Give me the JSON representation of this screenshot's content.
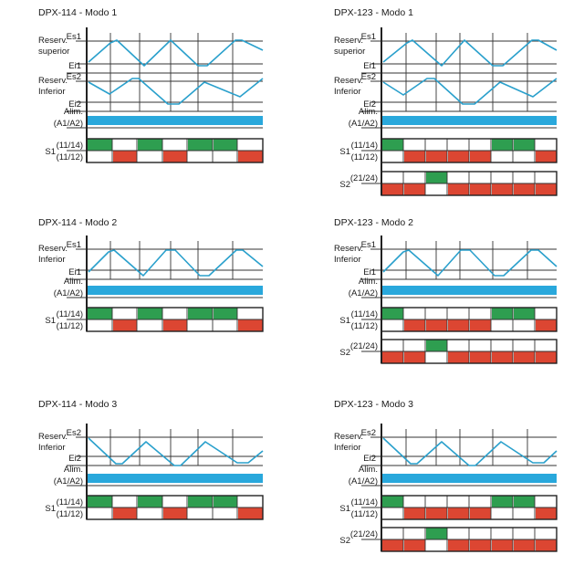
{
  "colors": {
    "wave": "#2aa0cc",
    "alim": "#29a8dc",
    "green": "#2e9e50",
    "red": "#dc4632",
    "grid": "#333333"
  },
  "panels": [
    {
      "title": "DPX-114 - Modo 1",
      "waves": [
        {
          "label": [
            "Reserv.",
            "superior"
          ],
          "hi": "Es1",
          "lo": "Ei1"
        },
        {
          "label": [
            "Reserv.",
            "Inferior"
          ],
          "hi": "Es2",
          "lo": "Ei2"
        }
      ],
      "alim": [
        "Alim.",
        "(A1/A2)"
      ],
      "relays": [
        {
          "name": "S1",
          "top": "(11/14)",
          "bot": "(11/12)",
          "pattern": [
            1,
            0,
            1,
            0,
            1,
            1,
            0
          ]
        }
      ]
    },
    {
      "title": "DPX-123 - Modo 1",
      "waves": [
        {
          "label": [
            "Reserv.",
            "superior"
          ],
          "hi": "Es1",
          "lo": "Ei1"
        },
        {
          "label": [
            "Reserv.",
            "Inferior"
          ],
          "hi": "Es2",
          "lo": "Ei2"
        }
      ],
      "alim": [
        "Alim.",
        "(A1/A2)"
      ],
      "relays": [
        {
          "name": "S1",
          "top": "(11/14)",
          "bot": "(11/12)",
          "pattern": [
            1,
            0,
            0,
            0,
            0,
            1,
            1,
            0
          ]
        },
        {
          "name": "S2",
          "top": "(21/24)",
          "bot": "",
          "pattern": [
            0,
            0,
            1,
            0,
            0,
            0,
            0,
            0
          ]
        }
      ]
    },
    {
      "title": "DPX-114 - Modo 2",
      "waves": [
        {
          "label": [
            "Reserv.",
            "Inferior"
          ],
          "hi": "Es1",
          "lo": "Ei1"
        }
      ],
      "alim": [
        "Alim.",
        "(A1/A2)"
      ],
      "relays": [
        {
          "name": "S1",
          "top": "(11/14)",
          "bot": "(11/12)",
          "pattern": [
            1,
            0,
            1,
            0,
            1,
            1,
            0
          ]
        }
      ]
    },
    {
      "title": "DPX-123 - Modo 2",
      "waves": [
        {
          "label": [
            "Reserv.",
            "Inferior"
          ],
          "hi": "Es1",
          "lo": "Ei1"
        }
      ],
      "alim": [
        "Alim.",
        "(A1/A2)"
      ],
      "relays": [
        {
          "name": "S1",
          "top": "(11/14)",
          "bot": "(11/12)",
          "pattern": [
            1,
            0,
            0,
            0,
            0,
            1,
            1,
            0
          ]
        },
        {
          "name": "S2",
          "top": "(21/24)",
          "bot": "",
          "pattern": [
            0,
            0,
            1,
            0,
            0,
            0,
            0,
            0
          ]
        }
      ]
    },
    {
      "title": "DPX-114 - Modo 3",
      "waves": [
        {
          "label": [
            "Reserv.",
            "Inferior"
          ],
          "hi": "Es2",
          "lo": "Ei2"
        }
      ],
      "alim": [
        "Alim.",
        "(A1/A2)"
      ],
      "relays": [
        {
          "name": "S1",
          "top": "(11/14)",
          "bot": "(11/12)",
          "pattern": [
            1,
            0,
            1,
            0,
            1,
            1,
            0
          ]
        }
      ]
    },
    {
      "title": "DPX-123 - Modo 3",
      "waves": [
        {
          "label": [
            "Reserv.",
            "Inferior"
          ],
          "hi": "Es2",
          "lo": "Ei2"
        }
      ],
      "alim": [
        "Alim.",
        "(A1/A2)"
      ],
      "relays": [
        {
          "name": "S1",
          "top": "(11/14)",
          "bot": "(11/12)",
          "pattern": [
            1,
            0,
            0,
            0,
            0,
            1,
            1,
            0
          ]
        },
        {
          "name": "S2",
          "top": "(21/24)",
          "bot": "",
          "pattern": [
            0,
            0,
            1,
            0,
            0,
            0,
            0,
            0
          ]
        }
      ]
    }
  ]
}
